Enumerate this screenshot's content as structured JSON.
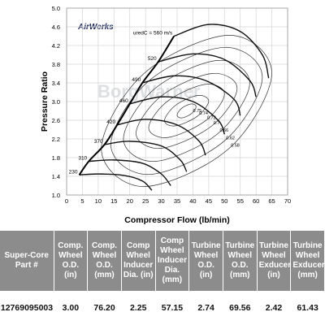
{
  "chart_data": {
    "type": "compressor-map",
    "logo": "AirWerks",
    "watermark": "BorgWarner",
    "xlabel": "Compressor Flow (lb/min)",
    "ylabel": "Pressure Ratio",
    "xlim": [
      0,
      70
    ],
    "ylim": [
      1,
      5
    ],
    "xticks": [
      0,
      5,
      10,
      15,
      20,
      25,
      30,
      35,
      40,
      45,
      50,
      55,
      60,
      65,
      70
    ],
    "yticks": [
      {
        "value": 1,
        "label": "1.0"
      },
      1.4,
      1.8,
      2.2,
      2.6,
      {
        "value": 3,
        "label": "3.0"
      },
      3.4,
      3.8,
      4.2,
      4.6,
      {
        "value": 5,
        "label": "5.0"
      }
    ],
    "grid": true,
    "speed_lines": [
      {
        "name": "230",
        "x": [
          4,
          10,
          18,
          24,
          27
        ],
        "y": [
          1.43,
          1.45,
          1.42,
          1.3,
          1.1
        ]
      },
      {
        "name": "310",
        "x": [
          7,
          15,
          24,
          30,
          33
        ],
        "y": [
          1.72,
          1.75,
          1.68,
          1.45,
          1.2
        ]
      },
      {
        "name": "370",
        "x": [
          12,
          20,
          30,
          36,
          38
        ],
        "y": [
          2.08,
          2.15,
          2.05,
          1.75,
          1.5
        ]
      },
      {
        "name": "420",
        "x": [
          16,
          25,
          35,
          42,
          44
        ],
        "y": [
          2.5,
          2.62,
          2.5,
          2.15,
          1.85
        ]
      },
      {
        "name": "460",
        "x": [
          20,
          30,
          40,
          48,
          50
        ],
        "y": [
          2.95,
          3.1,
          3.0,
          2.6,
          2.3
        ]
      },
      {
        "name": "490",
        "x": [
          24,
          34,
          44,
          53,
          55
        ],
        "y": [
          3.4,
          3.55,
          3.45,
          3.05,
          2.7
        ]
      },
      {
        "name": "520",
        "x": [
          29,
          40,
          50,
          58,
          60
        ],
        "y": [
          3.85,
          4.02,
          3.9,
          3.45,
          3.1
        ]
      },
      {
        "name": "uredC = 560 m/s",
        "x": [
          34,
          45,
          55,
          62,
          64
        ],
        "y": [
          4.4,
          4.65,
          4.5,
          4.0,
          3.5
        ]
      }
    ],
    "efficiency_islands": [
      {
        "name": "0.58",
        "x": [
          65,
          51.5,
          24.5,
          11,
          24.5,
          51.5
        ],
        "y": [
          3.61,
          4.42,
          3.6,
          1.99,
          1.18,
          2.0
        ]
      },
      {
        "name": "0.62",
        "x": [
          62,
          50,
          26,
          14,
          26,
          50
        ],
        "y": [
          3.52,
          4.16,
          3.44,
          2.08,
          1.44,
          2.16
        ]
      },
      {
        "name": "0.66",
        "x": [
          58,
          48,
          28,
          18,
          28,
          48
        ],
        "y": [
          3.4,
          3.88,
          3.28,
          2.2,
          1.72,
          2.32
        ]
      },
      {
        "name": "0.7",
        "x": [
          54,
          46,
          30,
          22,
          30,
          46
        ],
        "y": [
          3.28,
          3.6,
          3.12,
          2.32,
          2.0,
          2.48
        ]
      },
      {
        "name": "0.72",
        "x": [
          50,
          44,
          32,
          26,
          32,
          44
        ],
        "y": [
          3.16,
          3.37,
          3.01,
          2.44,
          2.23,
          2.59
        ]
      },
      {
        "name": "0.74",
        "x": [
          45,
          41.5,
          34.5,
          31,
          34.5,
          41.5
        ],
        "y": [
          3.01,
          3.13,
          2.92,
          2.59,
          2.48,
          2.69
        ]
      },
      {
        "name": "0.75",
        "x": [
          41,
          39.5,
          36.5,
          35,
          36.5,
          39.5
        ],
        "y": [
          2.89,
          2.95,
          2.86,
          2.71,
          2.65,
          2.74
        ]
      }
    ]
  },
  "table": {
    "header": [
      "Super-Core Part #",
      "Comp. Wheel O.D. (in)",
      "Comp. Wheel O.D. (mm)",
      "Comp Wheel Inducer Dia. (in)",
      "Comp Wheel Inducer Dia. (mm)",
      "Turbine Wheel O.D. (in)",
      "Turbine Wheel O.D. (mm)",
      "Turbine Wheel Exducer (in)",
      "Turbine Wheel Exducer (mm)"
    ],
    "rows": [
      [
        "12769095003",
        "3.00",
        "76.20",
        "2.25",
        "57.15",
        "2.74",
        "69.56",
        "2.42",
        "61.43"
      ]
    ]
  }
}
